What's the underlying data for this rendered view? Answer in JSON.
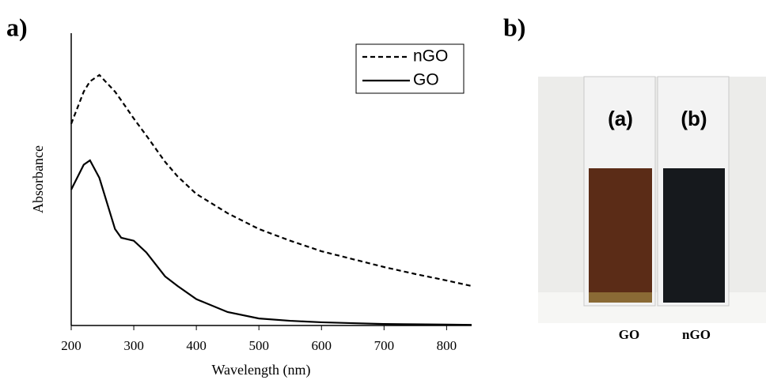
{
  "panel_labels": [
    "a)",
    "b)"
  ],
  "chart_data": {
    "type": "line",
    "xlabel": "Wavelength (nm)",
    "ylabel": "Absorbance",
    "x": [
      200,
      220,
      230,
      245,
      270,
      280,
      300,
      320,
      350,
      370,
      400,
      450,
      500,
      550,
      600,
      650,
      700,
      750,
      800,
      840
    ],
    "series": [
      {
        "name": "nGO",
        "color": "#000000",
        "style": "dashed",
        "values": [
          0.69,
          0.8,
          0.835,
          0.857,
          0.8,
          0.77,
          0.708,
          0.65,
          0.56,
          0.51,
          0.45,
          0.384,
          0.33,
          0.29,
          0.254,
          0.227,
          0.2,
          0.176,
          0.154,
          0.135
        ]
      },
      {
        "name": "GO",
        "color": "#000000",
        "style": "solid",
        "values": [
          0.465,
          0.55,
          0.565,
          0.505,
          0.33,
          0.3,
          0.29,
          0.25,
          0.168,
          0.135,
          0.09,
          0.046,
          0.024,
          0.016,
          0.011,
          0.008,
          0.005,
          0.004,
          0.003,
          0.002
        ]
      }
    ],
    "xlim": [
      200,
      840
    ],
    "ylim": [
      0,
      1
    ],
    "xticks": [
      200,
      300,
      400,
      500,
      600,
      700,
      800
    ],
    "legend": "upper right"
  },
  "photo": {
    "vial_labels": [
      "(a)",
      "(b)"
    ],
    "captions": [
      "GO",
      "nGO"
    ]
  }
}
